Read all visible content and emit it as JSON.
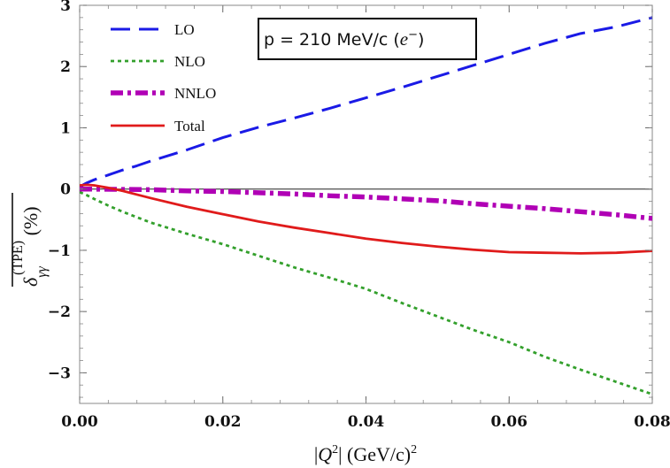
{
  "chart_data": {
    "type": "line",
    "xlim": [
      0,
      0.08
    ],
    "ylim": [
      -3.5,
      3
    ],
    "x_ticks": [
      0.0,
      0.02,
      0.04,
      0.06,
      0.08
    ],
    "x_tick_labels": [
      "0.00",
      "0.02",
      "0.04",
      "0.06",
      "0.08"
    ],
    "y_ticks": [
      -3,
      -2,
      -1,
      0,
      1,
      2,
      3
    ],
    "y_tick_labels": [
      "−3",
      "−2",
      "−1",
      "0",
      "1",
      "2",
      "3"
    ],
    "xlabel": {
      "pre": "|",
      "var": "Q",
      "sup": "2",
      "post": "| (GeV/c)",
      "post_sup": "2"
    },
    "ylabel": {
      "delta": "δ",
      "sub": "γγ",
      "sup": "(TPE)",
      "unit": " (%)"
    },
    "annotation": {
      "main": "p = 210 MeV/c (",
      "particle": "e",
      "charge": "−",
      "close": ")"
    },
    "zero_line": true,
    "legend_position": "top-left",
    "series": [
      {
        "name": "LO",
        "color": "#1a1ae6",
        "dash": "dashed",
        "x": [
          0,
          0.0005,
          0.001,
          0.002,
          0.004,
          0.006,
          0.008,
          0.01,
          0.015,
          0.02,
          0.025,
          0.03,
          0.035,
          0.04,
          0.045,
          0.05,
          0.055,
          0.06,
          0.065,
          0.07,
          0.075,
          0.08
        ],
        "values": [
          0.02,
          0.07,
          0.1,
          0.15,
          0.23,
          0.31,
          0.38,
          0.46,
          0.64,
          0.84,
          1.01,
          1.16,
          1.32,
          1.49,
          1.66,
          1.84,
          2.02,
          2.2,
          2.38,
          2.54,
          2.65,
          2.8
        ]
      },
      {
        "name": "NLO",
        "color": "#33a02c",
        "dash": "dotted",
        "x": [
          0,
          0.001,
          0.002,
          0.004,
          0.006,
          0.008,
          0.01,
          0.015,
          0.02,
          0.025,
          0.03,
          0.035,
          0.04,
          0.045,
          0.05,
          0.055,
          0.06,
          0.065,
          0.07,
          0.075,
          0.08
        ],
        "values": [
          -0.05,
          -0.1,
          -0.16,
          -0.27,
          -0.37,
          -0.46,
          -0.55,
          -0.73,
          -0.9,
          -1.09,
          -1.28,
          -1.45,
          -1.63,
          -1.86,
          -2.08,
          -2.3,
          -2.5,
          -2.74,
          -2.95,
          -3.15,
          -3.35
        ]
      },
      {
        "name": "NNLO",
        "color": "#b000b5",
        "dash": "dashdot",
        "x": [
          0,
          0.005,
          0.01,
          0.015,
          0.02,
          0.025,
          0.03,
          0.035,
          0.04,
          0.045,
          0.05,
          0.055,
          0.06,
          0.065,
          0.07,
          0.075,
          0.08
        ],
        "values": [
          0.0,
          -0.005,
          -0.01,
          -0.03,
          -0.04,
          -0.06,
          -0.08,
          -0.11,
          -0.13,
          -0.16,
          -0.19,
          -0.24,
          -0.28,
          -0.32,
          -0.37,
          -0.42,
          -0.48
        ]
      },
      {
        "name": "Total",
        "color": "#e01b1b",
        "dash": "solid",
        "x": [
          0,
          0.001,
          0.002,
          0.004,
          0.006,
          0.008,
          0.01,
          0.015,
          0.02,
          0.025,
          0.03,
          0.035,
          0.04,
          0.045,
          0.05,
          0.055,
          0.06,
          0.065,
          0.07,
          0.075,
          0.08
        ],
        "values": [
          0.06,
          0.07,
          0.06,
          0.02,
          -0.03,
          -0.09,
          -0.15,
          -0.29,
          -0.41,
          -0.53,
          -0.63,
          -0.72,
          -0.81,
          -0.88,
          -0.94,
          -0.99,
          -1.03,
          -1.04,
          -1.05,
          -1.04,
          -1.01
        ]
      }
    ]
  }
}
